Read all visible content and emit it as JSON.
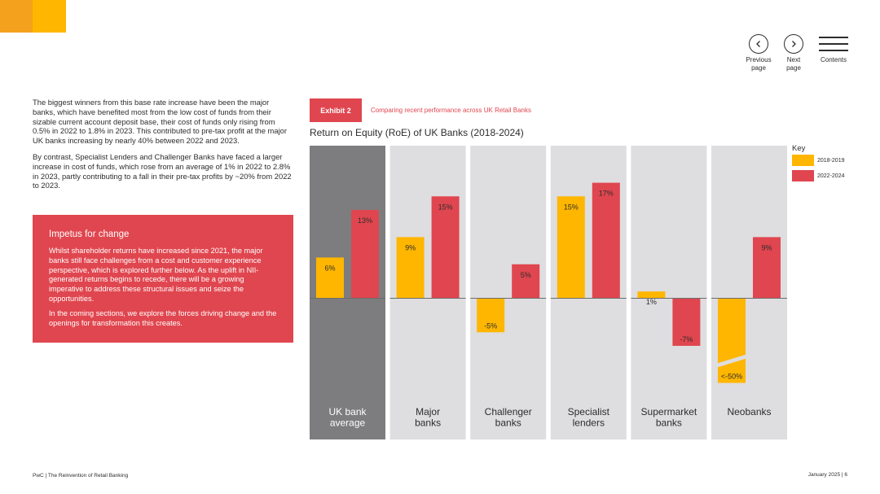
{
  "nav": {
    "previous_label": "Previous page",
    "next_label": "Next page",
    "contents_label": "Contents"
  },
  "intro": {
    "paragraph1": "The biggest winners from this base rate increase have been the major banks, which have benefited most from the low cost of funds from their sizable current account deposit base, their cost of funds only rising from 0.5% in 2022 to 1.8% in 2023. This contributed to pre-tax profit at the major UK banks increasing by nearly 40% between 2022 and 2023.",
    "paragraph2": "By contrast, Specialist Lenders and Challenger Banks have faced a larger increase in cost of funds, which rose from an average of 1% in 2022 to 2.8% in 2023, partly contributing to a fall in their pre-tax profits by ~20% from 2022 to 2023."
  },
  "impetus": {
    "title": "Impetus for change",
    "paragraph1": "Whilst shareholder returns have increased since 2021, the major banks still face challenges from a cost and customer experience perspective, which is explored further below. As the uplift in NII-generated returns begins to recede, there will be a growing imperative to address these structural issues and seize the opportunities.",
    "paragraph2": "In the coming sections, we explore the forces driving change and the openings for transformation this creates."
  },
  "exhibit": {
    "badge": "Exhibit 2",
    "caption": "Comparing recent performance across UK Retail Banks"
  },
  "colors": {
    "series1": "#ffb600",
    "series2": "#e0464f",
    "panel": "#dedddf",
    "panel_highlight": "#7d7c7e",
    "accent": "#e0464f"
  },
  "chart_data": {
    "type": "bar",
    "title": "Return on Equity (RoE) of UK Banks (2018-2024)",
    "categories": [
      "UK bank average",
      "Major banks",
      "Challenger banks",
      "Specialist lenders",
      "Supermarket banks",
      "Neobanks"
    ],
    "highlight_category": "UK bank average",
    "series": [
      {
        "name": "2018-2019",
        "values": [
          6,
          9,
          -5,
          15,
          1,
          -50
        ],
        "labels": [
          "6%",
          "9%",
          "-5%",
          "15%",
          "1%",
          "<-50%"
        ]
      },
      {
        "name": "2022-2024",
        "values": [
          13,
          15,
          5,
          17,
          -7,
          9
        ],
        "labels": [
          "13%",
          "15%",
          "5%",
          "17%",
          "-7%",
          "9%"
        ]
      }
    ],
    "truncated_bars": [
      {
        "series": "2018-2019",
        "category": "Neobanks"
      }
    ],
    "ylim": [
      -50,
      20
    ],
    "legend_title": "Key",
    "legend_position": "right",
    "xlabel": "",
    "ylabel": ""
  },
  "footer": {
    "left": "PwC | The Reinvention of Retail Banking",
    "right": "January 2025 | 6"
  }
}
